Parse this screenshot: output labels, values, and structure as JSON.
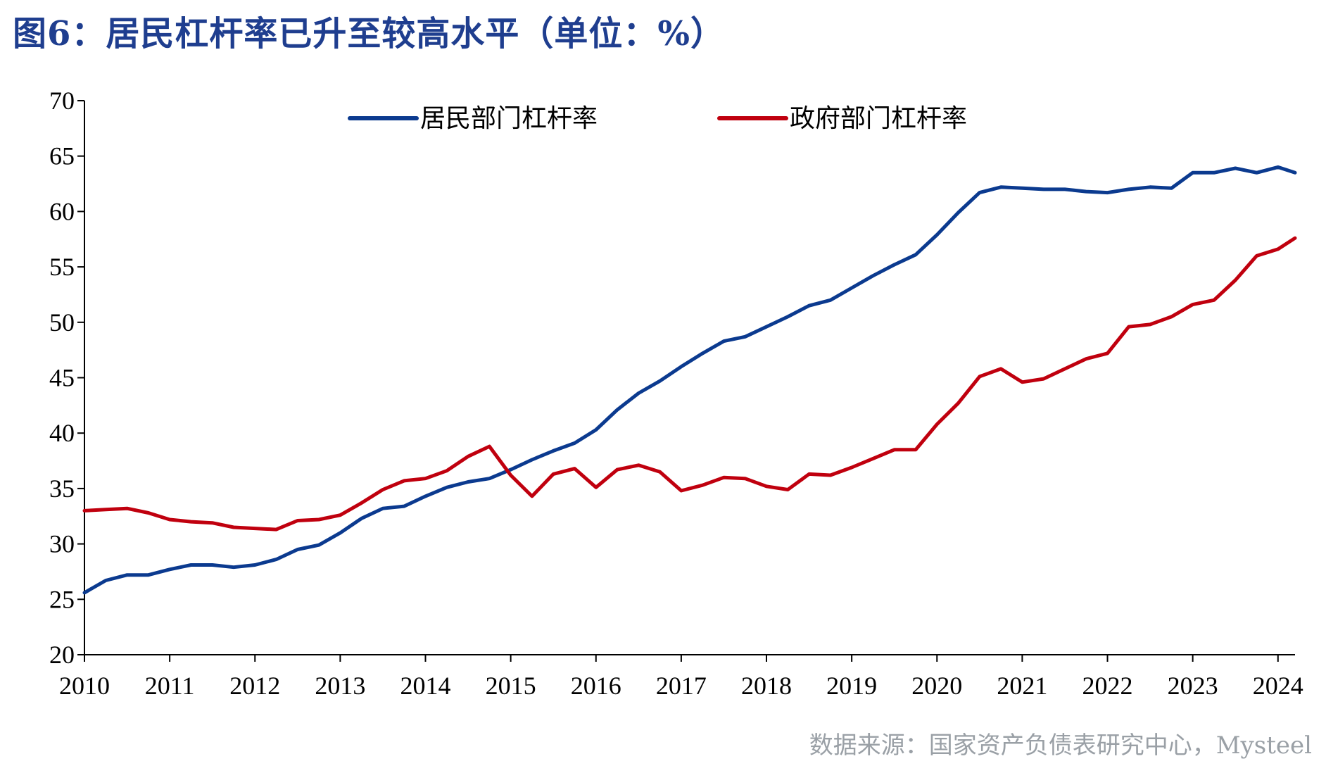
{
  "title": "图6：居民杠杆率已升至较高水平（单位：%）",
  "source": "数据来源：国家资产负债表研究中心，Mysteel",
  "colors": {
    "title": "#1f3e8f",
    "series_household": "#0b3a8f",
    "series_government": "#c0000e",
    "source": "#9aa0a6"
  },
  "chart_data": {
    "type": "line",
    "title": "图6：居民杠杆率已升至较高水平（单位：%）",
    "xlabel": "",
    "ylabel": "",
    "ylim": [
      20,
      70
    ],
    "yticks": [
      20,
      25,
      30,
      35,
      40,
      45,
      50,
      55,
      60,
      65,
      70
    ],
    "xlim": [
      2010,
      2024.2
    ],
    "xticks": [
      2010,
      2011,
      2012,
      2013,
      2014,
      2015,
      2016,
      2017,
      2018,
      2019,
      2020,
      2021,
      2022,
      2023,
      2024
    ],
    "xtick_labels": [
      "2010",
      "2011",
      "2012",
      "2013",
      "2014",
      "2015",
      "2016",
      "2017",
      "2018",
      "2019",
      "2020",
      "2021",
      "2022",
      "2023",
      "2024"
    ],
    "grid": false,
    "legend_position": "top",
    "x": [
      2010.0,
      2010.25,
      2010.5,
      2010.75,
      2011.0,
      2011.25,
      2011.5,
      2011.75,
      2012.0,
      2012.25,
      2012.5,
      2012.75,
      2013.0,
      2013.25,
      2013.5,
      2013.75,
      2014.0,
      2014.25,
      2014.5,
      2014.75,
      2015.0,
      2015.25,
      2015.5,
      2015.75,
      2016.0,
      2016.25,
      2016.5,
      2016.75,
      2017.0,
      2017.25,
      2017.5,
      2017.75,
      2018.0,
      2018.25,
      2018.5,
      2018.75,
      2019.0,
      2019.25,
      2019.5,
      2019.75,
      2020.0,
      2020.25,
      2020.5,
      2020.75,
      2021.0,
      2021.25,
      2021.5,
      2021.75,
      2022.0,
      2022.25,
      2022.5,
      2022.75,
      2023.0,
      2023.25,
      2023.5,
      2023.75,
      2024.0,
      2024.2
    ],
    "series": [
      {
        "name": "居民部门杠杆率",
        "values": [
          25.6,
          26.7,
          27.2,
          27.2,
          27.7,
          28.1,
          28.1,
          27.9,
          28.1,
          28.6,
          29.5,
          29.9,
          31.0,
          32.3,
          33.2,
          33.4,
          34.3,
          35.1,
          35.6,
          35.9,
          36.7,
          37.6,
          38.4,
          39.1,
          40.3,
          42.1,
          43.6,
          44.7,
          46.0,
          47.2,
          48.3,
          48.7,
          49.6,
          50.5,
          51.5,
          52.0,
          53.1,
          54.2,
          55.2,
          56.1,
          57.9,
          59.9,
          61.7,
          62.2,
          62.1,
          62.0,
          62.0,
          61.8,
          61.7,
          62.0,
          62.2,
          62.1,
          63.5,
          63.5,
          63.9,
          63.5,
          64.0,
          63.5
        ]
      },
      {
        "name": "政府部门杠杆率",
        "values": [
          33.0,
          33.1,
          33.2,
          32.8,
          32.2,
          32.0,
          31.9,
          31.5,
          31.4,
          31.3,
          32.1,
          32.2,
          32.6,
          33.7,
          34.9,
          35.7,
          35.9,
          36.6,
          37.9,
          38.8,
          36.2,
          34.3,
          36.3,
          36.8,
          35.1,
          36.7,
          37.1,
          36.5,
          34.8,
          35.3,
          36.0,
          35.9,
          35.2,
          34.9,
          36.3,
          36.2,
          36.9,
          37.7,
          38.5,
          38.5,
          40.8,
          42.7,
          45.1,
          45.8,
          44.6,
          44.9,
          45.8,
          46.7,
          47.2,
          49.6,
          49.8,
          50.5,
          51.6,
          52.0,
          53.8,
          56.0,
          56.6,
          57.6
        ]
      }
    ]
  }
}
